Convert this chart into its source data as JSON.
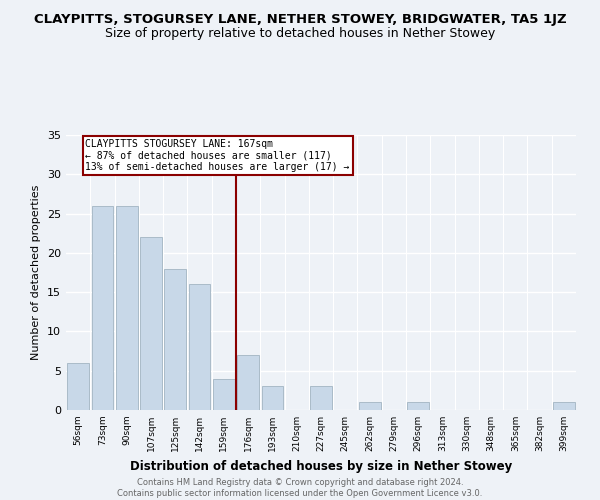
{
  "title": "CLAYPITTS, STOGURSEY LANE, NETHER STOWEY, BRIDGWATER, TA5 1JZ",
  "subtitle": "Size of property relative to detached houses in Nether Stowey",
  "xlabel": "Distribution of detached houses by size in Nether Stowey",
  "ylabel": "Number of detached properties",
  "bar_labels": [
    "56sqm",
    "73sqm",
    "90sqm",
    "107sqm",
    "125sqm",
    "142sqm",
    "159sqm",
    "176sqm",
    "193sqm",
    "210sqm",
    "227sqm",
    "245sqm",
    "262sqm",
    "279sqm",
    "296sqm",
    "313sqm",
    "330sqm",
    "348sqm",
    "365sqm",
    "382sqm",
    "399sqm"
  ],
  "bar_values": [
    6,
    26,
    26,
    22,
    18,
    16,
    4,
    7,
    3,
    0,
    3,
    0,
    1,
    0,
    1,
    0,
    0,
    0,
    0,
    0,
    1
  ],
  "bar_color": "#c8d8e8",
  "bar_edge_color": "#aabbc8",
  "reference_line_x": 6.5,
  "reference_line_label": "CLAYPITTS STOGURSEY LANE: 167sqm",
  "annotation_line1": "← 87% of detached houses are smaller (117)",
  "annotation_line2": "13% of semi-detached houses are larger (17) →",
  "ylim": [
    0,
    35
  ],
  "yticks": [
    0,
    5,
    10,
    15,
    20,
    25,
    30,
    35
  ],
  "title_fontsize": 9.5,
  "subtitle_fontsize": 9,
  "footer_line1": "Contains HM Land Registry data © Crown copyright and database right 2024.",
  "footer_line2": "Contains public sector information licensed under the Open Government Licence v3.0.",
  "background_color": "#eef2f7"
}
